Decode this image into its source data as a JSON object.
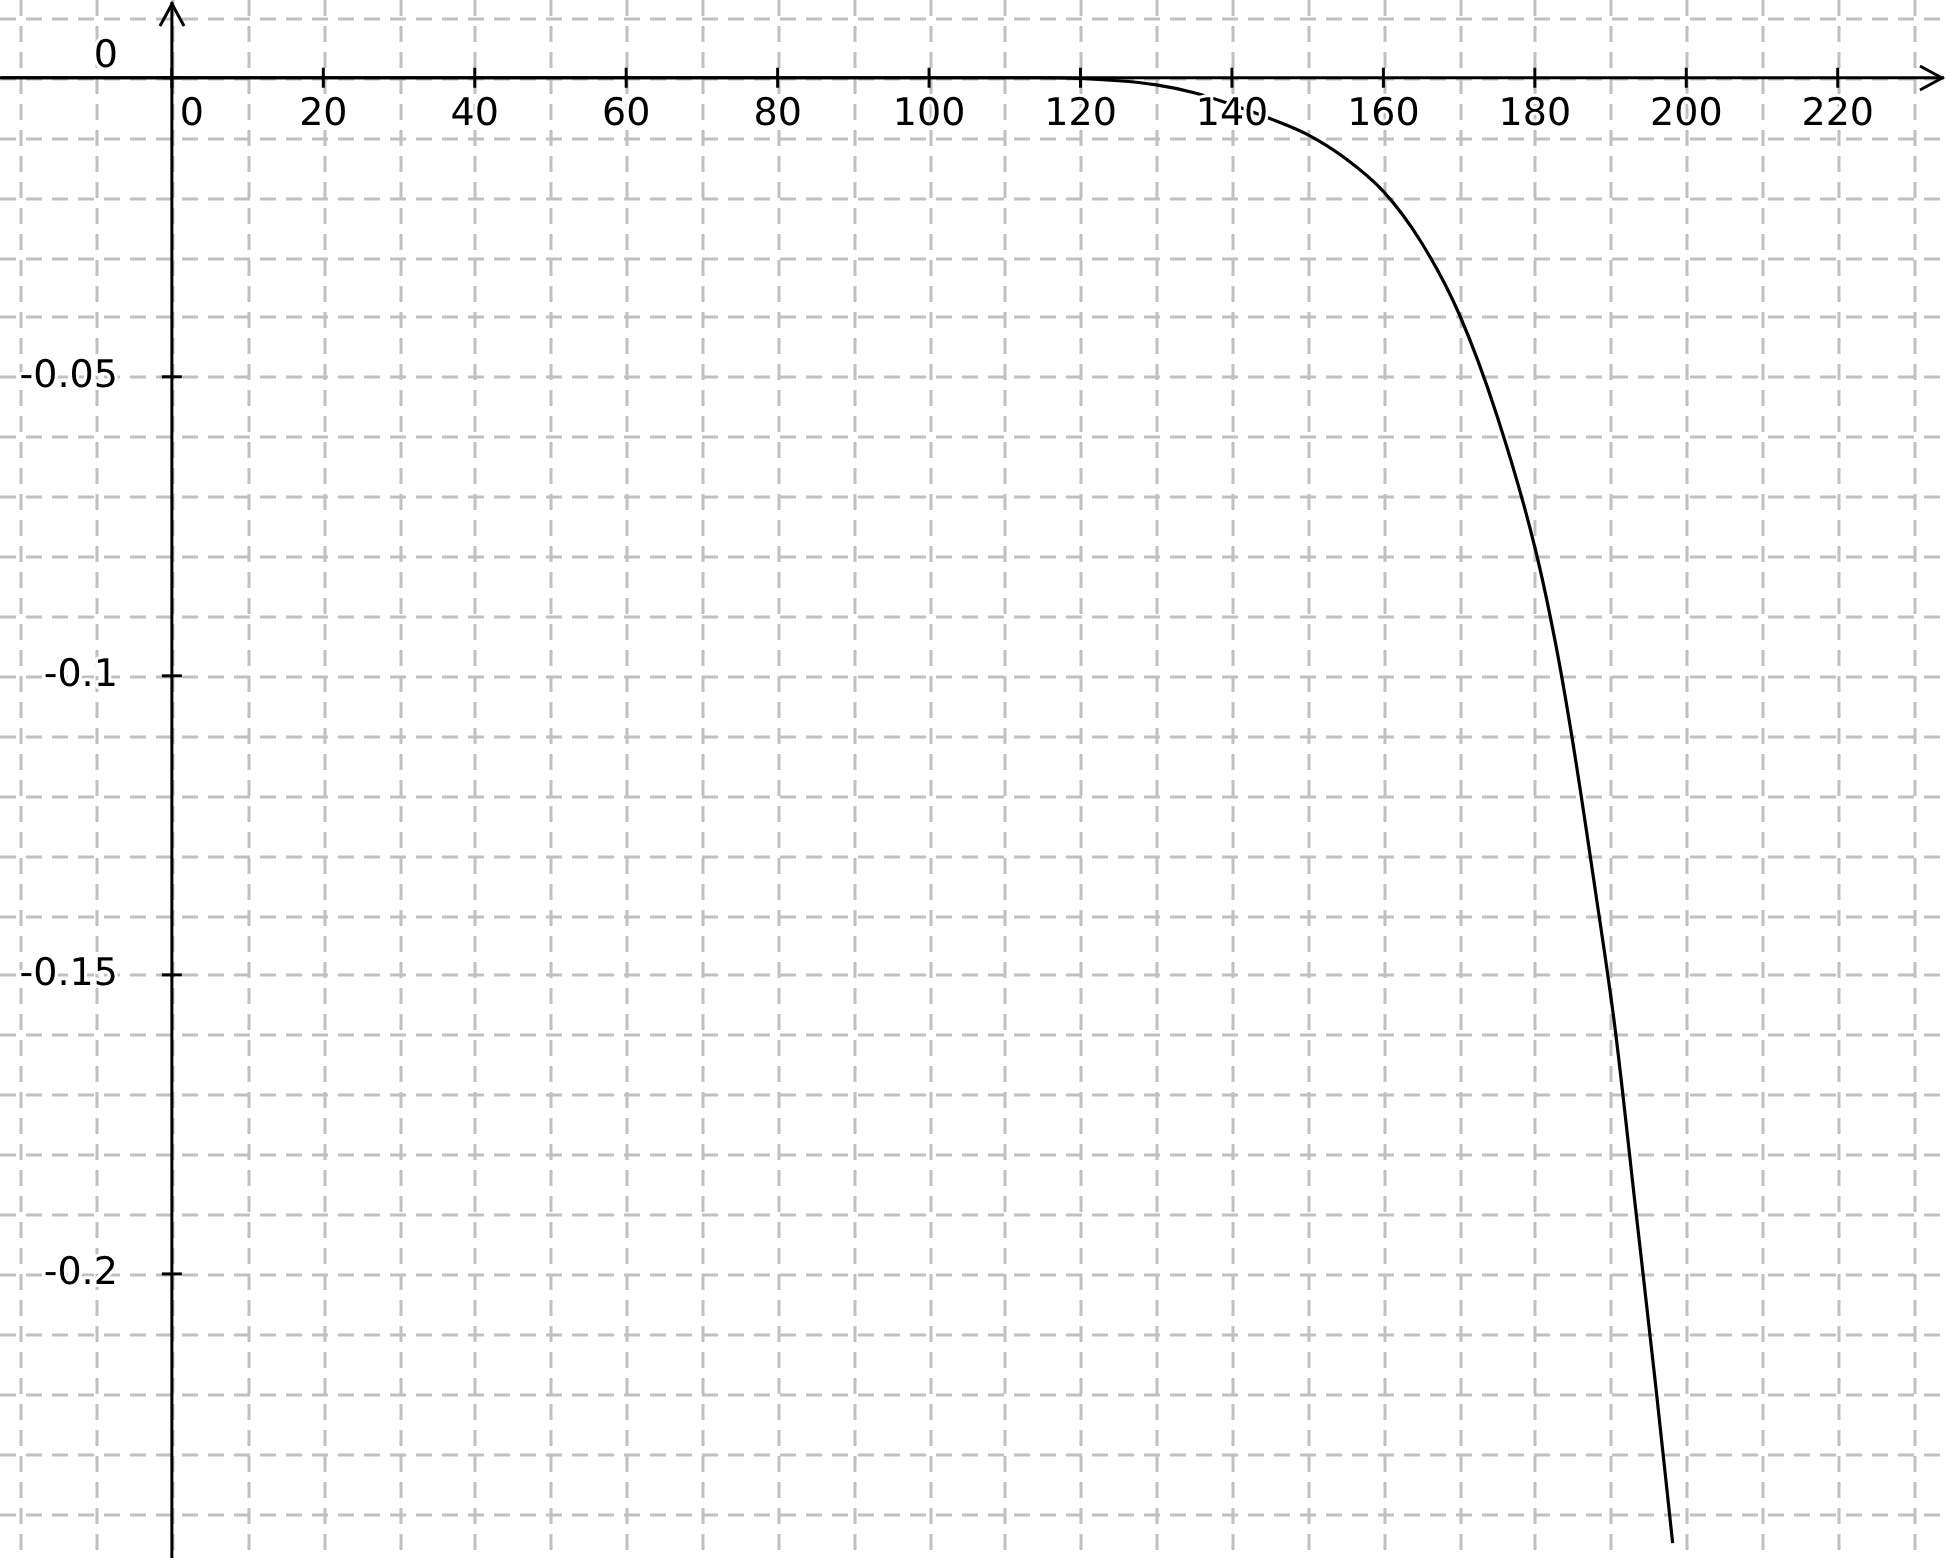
{
  "chart_data": {
    "type": "line",
    "xlim": [
      -22.7,
      234.3
    ],
    "ylim": [
      -0.2475,
      0.013
    ],
    "xticks": [
      {
        "value": -20,
        "label": null
      },
      {
        "value": -10,
        "label": null
      },
      0,
      {
        "value": 10,
        "label": null
      },
      20,
      {
        "value": 30,
        "label": null
      },
      40,
      {
        "value": 50,
        "label": null
      },
      60,
      {
        "value": 70,
        "label": null
      },
      80,
      {
        "value": 90,
        "label": null
      },
      100,
      {
        "value": 110,
        "label": null
      },
      120,
      {
        "value": 130,
        "label": null
      },
      140,
      {
        "value": 150,
        "label": null
      },
      160,
      {
        "value": 170,
        "label": null
      },
      180,
      {
        "value": 190,
        "label": null
      },
      200,
      {
        "value": 210,
        "label": null
      },
      220,
      {
        "value": 230,
        "label": null
      }
    ],
    "yticks": [
      {
        "value": 0.01,
        "label": null
      },
      0,
      {
        "value": -0.01,
        "label": null
      },
      {
        "value": -0.02,
        "label": null
      },
      {
        "value": -0.03,
        "label": null
      },
      {
        "value": -0.04,
        "label": null
      },
      -0.05,
      {
        "value": -0.06,
        "label": null
      },
      {
        "value": -0.07,
        "label": null
      },
      {
        "value": -0.08,
        "label": null
      },
      {
        "value": -0.09,
        "label": null
      },
      -0.1,
      {
        "value": -0.11,
        "label": null
      },
      {
        "value": -0.12,
        "label": null
      },
      {
        "value": -0.13,
        "label": null
      },
      {
        "value": -0.14,
        "label": null
      },
      -0.15,
      {
        "value": -0.16,
        "label": null
      },
      {
        "value": -0.17,
        "label": null
      },
      {
        "value": -0.18,
        "label": null
      },
      {
        "value": -0.19,
        "label": null
      },
      -0.2,
      {
        "value": -0.21,
        "label": null
      },
      {
        "value": -0.22,
        "label": null
      },
      {
        "value": -0.23,
        "label": null
      },
      {
        "value": -0.24,
        "label": null
      }
    ],
    "grid": true,
    "legend": false,
    "marker": "none",
    "line_style": "solid",
    "series": [
      {
        "color": "#000000",
        "x": [
          -22.5,
          0,
          50,
          100,
          115,
          125,
          130,
          135,
          140,
          145,
          150,
          155,
          160,
          165,
          170,
          175,
          180,
          182.8,
          185,
          188,
          190.6,
          193.3,
          195.9,
          198.2
        ],
        "values": [
          0,
          0,
          0,
          0,
          0,
          -0.0005,
          -0.0012,
          -0.0025,
          -0.0045,
          -0.0068,
          -0.0095,
          -0.0135,
          -0.019,
          -0.0275,
          -0.0395,
          -0.0565,
          -0.0785,
          -0.095,
          -0.111,
          -0.136,
          -0.159,
          -0.189,
          -0.218,
          -0.245
        ]
      }
    ]
  }
}
